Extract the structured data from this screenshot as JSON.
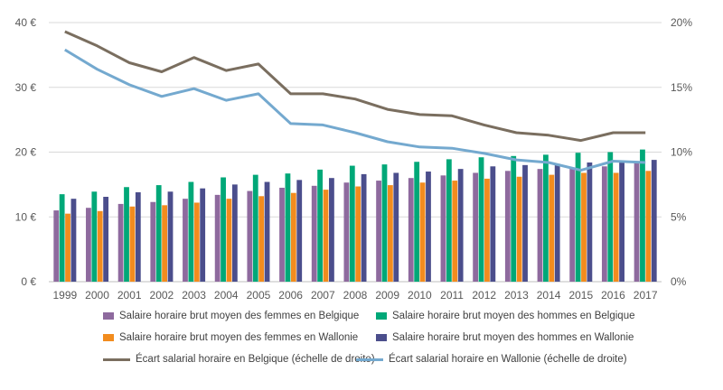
{
  "chart_data": {
    "type": "bar",
    "categories": [
      "1999",
      "2000",
      "2001",
      "2002",
      "2003",
      "2004",
      "2005",
      "2006",
      "2007",
      "2008",
      "2009",
      "2010",
      "2011",
      "2012",
      "2013",
      "2014",
      "2015",
      "2016",
      "2017"
    ],
    "series": [
      {
        "name": "Salaire horaire brut moyen des femmes en Belgique",
        "type": "bar",
        "axis": "left",
        "color": "#8E6A9E",
        "values": [
          11.0,
          11.4,
          12.0,
          12.3,
          12.8,
          13.4,
          14.0,
          14.5,
          14.8,
          15.3,
          15.6,
          16.0,
          16.4,
          16.8,
          17.1,
          17.4,
          17.6,
          17.8,
          18.3
        ]
      },
      {
        "name": "Salaire horaire brut moyen des hommes en Belgique",
        "type": "bar",
        "axis": "left",
        "color": "#00A878",
        "values": [
          13.5,
          13.9,
          14.6,
          14.9,
          15.4,
          16.1,
          16.5,
          16.7,
          17.3,
          17.9,
          18.1,
          18.5,
          18.9,
          19.2,
          19.4,
          19.6,
          19.9,
          20.0,
          20.4
        ]
      },
      {
        "name": "Salaire horaire brut moyen des femmes en Wallonie",
        "type": "bar",
        "axis": "left",
        "color": "#F28C1E",
        "values": [
          10.5,
          10.9,
          11.6,
          11.8,
          12.2,
          12.8,
          13.2,
          13.7,
          14.2,
          14.7,
          14.9,
          15.3,
          15.6,
          15.9,
          16.2,
          16.5,
          16.8,
          16.8,
          17.1
        ]
      },
      {
        "name": "Salaire horaire brut moyen des hommes en Wallonie",
        "type": "bar",
        "axis": "left",
        "color": "#4B4E8C",
        "values": [
          12.8,
          13.1,
          13.8,
          13.9,
          14.4,
          15.0,
          15.4,
          15.7,
          16.0,
          16.6,
          16.8,
          17.0,
          17.4,
          17.8,
          18.0,
          18.2,
          18.4,
          18.6,
          18.8
        ]
      },
      {
        "name": "Écart salarial horaire en Belgique (échelle de droite)",
        "type": "line",
        "axis": "right",
        "color": "#7A6E5F",
        "values": [
          19.3,
          18.2,
          16.9,
          16.2,
          17.3,
          16.3,
          16.8,
          14.5,
          14.5,
          14.1,
          13.3,
          12.9,
          12.8,
          12.1,
          11.5,
          11.3,
          10.9,
          11.5,
          11.5
        ]
      },
      {
        "name": "Écart salarial horaire en Wallonie (échelle de droite)",
        "type": "line",
        "axis": "right",
        "color": "#74A9CF",
        "values": [
          17.9,
          16.4,
          15.2,
          14.3,
          14.9,
          14.0,
          14.5,
          12.2,
          12.1,
          11.5,
          10.8,
          10.4,
          10.3,
          9.9,
          9.4,
          9.2,
          8.6,
          9.3,
          9.2
        ]
      }
    ],
    "y_left": {
      "ylim": [
        0,
        40
      ],
      "ticks": [
        "0 €",
        "10 €",
        "20 €",
        "30 €",
        "40 €"
      ]
    },
    "y_right": {
      "ylim": [
        0,
        20
      ],
      "ticks": [
        "0%",
        "5%",
        "10%",
        "15%",
        "20%"
      ]
    },
    "xlabel": "",
    "ylabel": "",
    "grid": true,
    "legend_position": "bottom"
  }
}
